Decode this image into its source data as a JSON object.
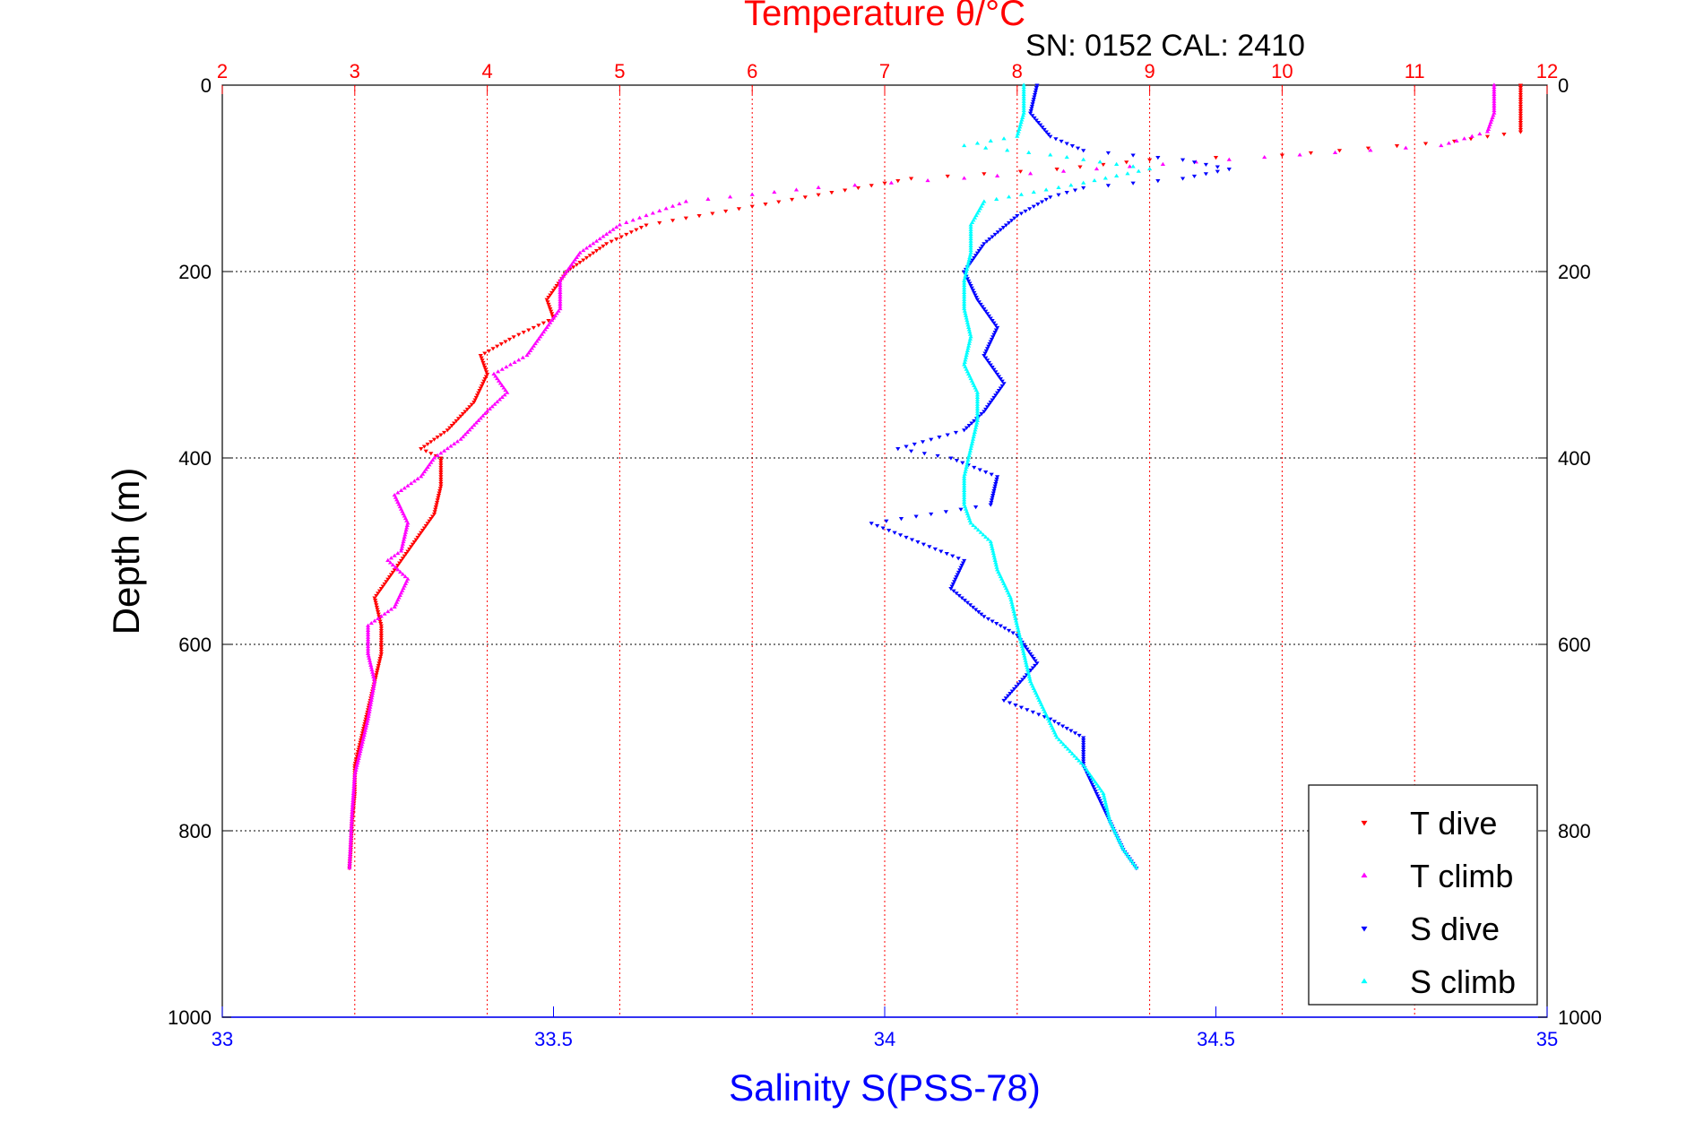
{
  "chart_data": {
    "type": "scatter",
    "title": "Temperature θ/°C",
    "subtitle": "SN: 0152  CAL: 2410",
    "ylabel": "Depth (m)",
    "xlabel": "Salinity S(PSS-78)",
    "top_axis": {
      "label": "Temperature θ/°C",
      "range": [
        2,
        12
      ],
      "ticks": [
        "2",
        "3",
        "4",
        "5",
        "6",
        "7",
        "8",
        "9",
        "10",
        "11",
        "12"
      ],
      "color": "#ff0000"
    },
    "bottom_axis": {
      "label": "Salinity S(PSS-78)",
      "range": [
        33,
        35
      ],
      "ticks": [
        "33",
        "33.5",
        "34",
        "34.5",
        "35"
      ],
      "color": "#0000ff"
    },
    "y_axis": {
      "range": [
        0,
        1000
      ],
      "reversed": true,
      "ticks": [
        "0",
        "200",
        "400",
        "600",
        "800",
        "1000"
      ]
    },
    "grid": true,
    "legend_position": "bottom-right",
    "series": [
      {
        "name": "T dive",
        "axis": "top",
        "color": "#ff0000",
        "marker": "triangle-down",
        "points": [
          [
            11.8,
            0
          ],
          [
            11.8,
            20
          ],
          [
            11.8,
            50
          ],
          [
            11.3,
            60
          ],
          [
            10.0,
            75
          ],
          [
            9.0,
            80
          ],
          [
            8.3,
            90
          ],
          [
            7.2,
            100
          ],
          [
            6.4,
            120
          ],
          [
            5.2,
            150
          ],
          [
            4.9,
            170
          ],
          [
            4.6,
            200
          ],
          [
            4.45,
            230
          ],
          [
            4.5,
            250
          ],
          [
            4.2,
            270
          ],
          [
            3.95,
            290
          ],
          [
            4.0,
            310
          ],
          [
            3.9,
            340
          ],
          [
            3.7,
            370
          ],
          [
            3.5,
            390
          ],
          [
            3.65,
            400
          ],
          [
            3.65,
            430
          ],
          [
            3.6,
            460
          ],
          [
            3.45,
            490
          ],
          [
            3.3,
            520
          ],
          [
            3.15,
            550
          ],
          [
            3.2,
            580
          ],
          [
            3.2,
            610
          ],
          [
            3.15,
            640
          ],
          [
            3.1,
            670
          ],
          [
            3.05,
            700
          ],
          [
            3.0,
            730
          ],
          [
            3.0,
            760
          ],
          [
            2.98,
            790
          ],
          [
            2.97,
            820
          ],
          [
            2.96,
            840
          ]
        ]
      },
      {
        "name": "T climb",
        "axis": "top",
        "color": "#ff00ff",
        "marker": "triangle-up",
        "points": [
          [
            11.6,
            0
          ],
          [
            11.6,
            30
          ],
          [
            11.55,
            50
          ],
          [
            11.2,
            65
          ],
          [
            9.6,
            80
          ],
          [
            8.6,
            90
          ],
          [
            7.6,
            100
          ],
          [
            6.5,
            110
          ],
          [
            5.5,
            125
          ],
          [
            5.0,
            150
          ],
          [
            4.7,
            180
          ],
          [
            4.55,
            210
          ],
          [
            4.55,
            240
          ],
          [
            4.45,
            260
          ],
          [
            4.3,
            290
          ],
          [
            4.05,
            310
          ],
          [
            4.15,
            330
          ],
          [
            4.0,
            350
          ],
          [
            3.8,
            380
          ],
          [
            3.6,
            400
          ],
          [
            3.5,
            420
          ],
          [
            3.3,
            440
          ],
          [
            3.4,
            470
          ],
          [
            3.35,
            500
          ],
          [
            3.25,
            510
          ],
          [
            3.4,
            530
          ],
          [
            3.3,
            560
          ],
          [
            3.1,
            580
          ],
          [
            3.1,
            610
          ],
          [
            3.15,
            640
          ],
          [
            3.1,
            680
          ],
          [
            3.05,
            710
          ],
          [
            3.0,
            740
          ],
          [
            2.98,
            780
          ],
          [
            2.97,
            810
          ],
          [
            2.96,
            840
          ]
        ]
      },
      {
        "name": "S dive",
        "axis": "bottom",
        "color": "#0000ff",
        "marker": "triangle-down",
        "points": [
          [
            34.23,
            0
          ],
          [
            34.22,
            30
          ],
          [
            34.25,
            55
          ],
          [
            34.3,
            70
          ],
          [
            34.45,
            80
          ],
          [
            34.52,
            90
          ],
          [
            34.45,
            100
          ],
          [
            34.3,
            110
          ],
          [
            34.25,
            120
          ],
          [
            34.2,
            140
          ],
          [
            34.15,
            170
          ],
          [
            34.12,
            200
          ],
          [
            34.14,
            230
          ],
          [
            34.17,
            260
          ],
          [
            34.15,
            290
          ],
          [
            34.18,
            320
          ],
          [
            34.15,
            350
          ],
          [
            34.12,
            370
          ],
          [
            34.02,
            390
          ],
          [
            34.1,
            400
          ],
          [
            34.17,
            420
          ],
          [
            34.16,
            450
          ],
          [
            33.98,
            470
          ],
          [
            34.05,
            490
          ],
          [
            34.12,
            510
          ],
          [
            34.1,
            540
          ],
          [
            34.15,
            570
          ],
          [
            34.2,
            590
          ],
          [
            34.23,
            620
          ],
          [
            34.18,
            660
          ],
          [
            34.25,
            680
          ],
          [
            34.3,
            700
          ],
          [
            34.3,
            730
          ],
          [
            34.32,
            760
          ],
          [
            34.34,
            790
          ],
          [
            34.36,
            820
          ],
          [
            34.38,
            840
          ]
        ]
      },
      {
        "name": "S climb",
        "axis": "bottom",
        "color": "#00ffff",
        "marker": "triangle-up",
        "points": [
          [
            34.21,
            0
          ],
          [
            34.21,
            30
          ],
          [
            34.2,
            55
          ],
          [
            34.12,
            65
          ],
          [
            34.25,
            75
          ],
          [
            34.4,
            90
          ],
          [
            34.3,
            105
          ],
          [
            34.15,
            125
          ],
          [
            34.13,
            150
          ],
          [
            34.13,
            180
          ],
          [
            34.12,
            210
          ],
          [
            34.12,
            240
          ],
          [
            34.13,
            270
          ],
          [
            34.12,
            300
          ],
          [
            34.14,
            330
          ],
          [
            34.14,
            360
          ],
          [
            34.13,
            390
          ],
          [
            34.12,
            420
          ],
          [
            34.12,
            450
          ],
          [
            34.13,
            470
          ],
          [
            34.16,
            490
          ],
          [
            34.17,
            520
          ],
          [
            34.19,
            550
          ],
          [
            34.2,
            580
          ],
          [
            34.21,
            610
          ],
          [
            34.22,
            640
          ],
          [
            34.24,
            670
          ],
          [
            34.26,
            700
          ],
          [
            34.3,
            730
          ],
          [
            34.33,
            760
          ],
          [
            34.34,
            790
          ],
          [
            34.36,
            820
          ],
          [
            34.38,
            840
          ]
        ]
      }
    ]
  }
}
